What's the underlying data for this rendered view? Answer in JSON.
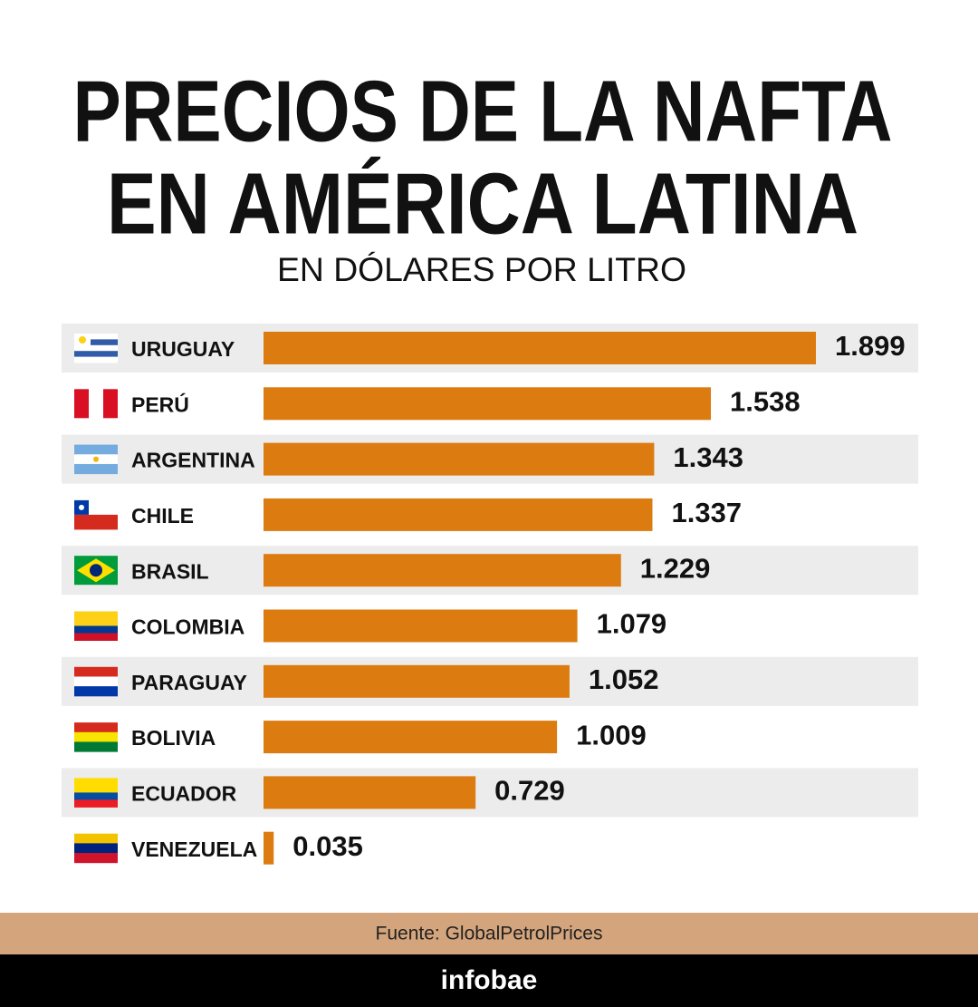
{
  "chart_data": {
    "type": "barh",
    "title": [
      "PRECIOS DE LA NAFTA",
      "EN AMÉRICA LATINA"
    ],
    "subtitle": "EN DÓLARES POR LITRO",
    "categories": [
      "URUGUAY",
      "PERÚ",
      "ARGENTINA",
      "CHILE",
      "BRASIL",
      "COLOMBIA",
      "PARAGUAY",
      "BOLIVIA",
      "ECUADOR",
      "VENEZUELA"
    ],
    "values": [
      1.899,
      1.538,
      1.343,
      1.337,
      1.229,
      1.079,
      1.052,
      1.009,
      0.729,
      0.035
    ],
    "color": "#dc7b10",
    "source": "Fuente: GlobalPetrolPrices",
    "brand": "infobae"
  }
}
